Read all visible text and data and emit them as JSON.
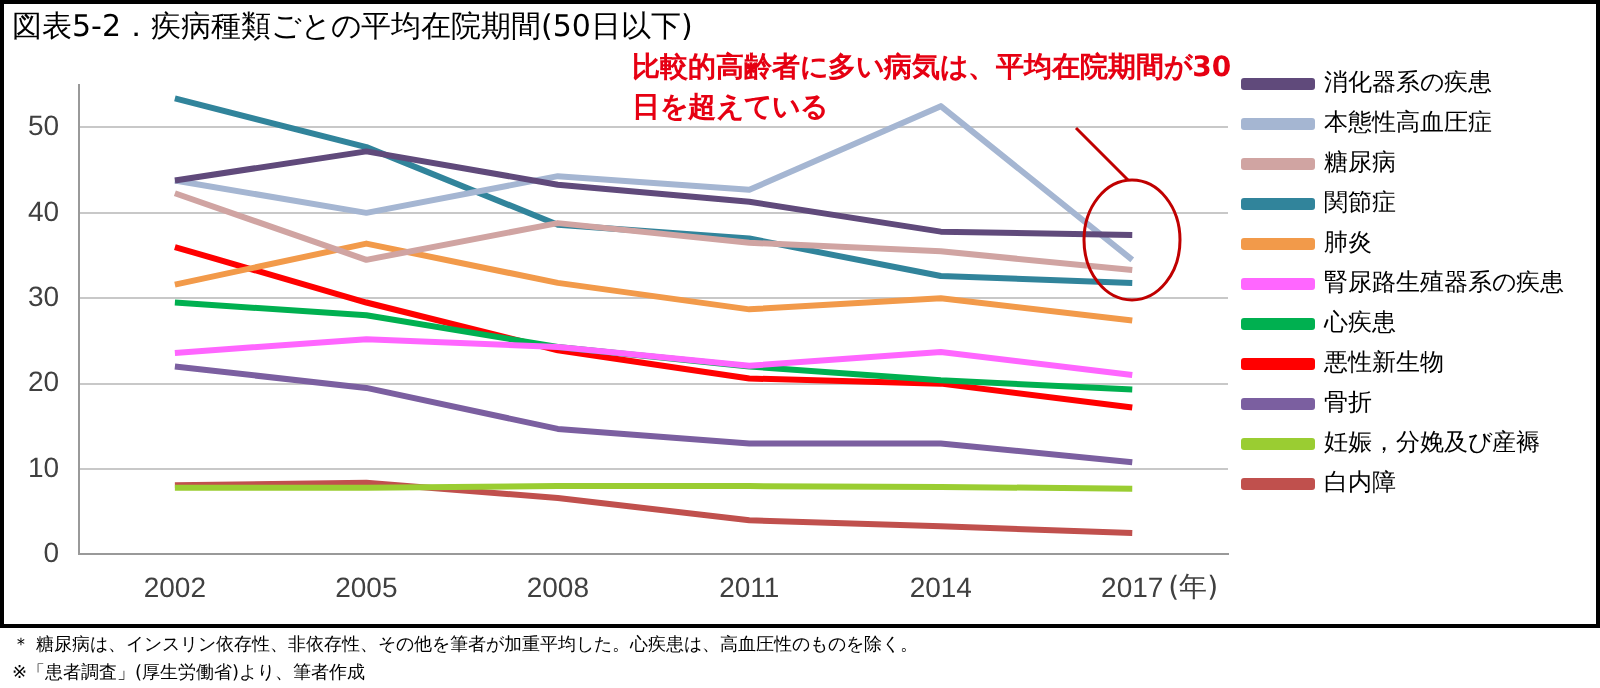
{
  "chart_data": {
    "type": "line",
    "title": "図表5-2．疾病種類ごとの平均在院期間(50日以下)",
    "xlabel": "(年)",
    "categories": [
      "2002",
      "2005",
      "2008",
      "2011",
      "2014",
      "2017"
    ],
    "series": [
      {
        "name": "消化器系の疾患",
        "color": "#604a7b",
        "values": [
          43.8,
          47.2,
          43.3,
          41.3,
          37.8,
          37.4
        ]
      },
      {
        "name": "本態性高血圧症",
        "color": "#a5b6d2",
        "values": [
          43.8,
          40.0,
          44.3,
          42.7,
          52.5,
          34.5
        ]
      },
      {
        "name": "糖尿病",
        "color": "#d0a4a2",
        "values": [
          42.3,
          34.5,
          38.8,
          36.5,
          35.5,
          33.3
        ]
      },
      {
        "name": "関節症",
        "color": "#31849b",
        "values": [
          53.4,
          47.7,
          38.6,
          37.0,
          32.6,
          31.8
        ]
      },
      {
        "name": "肺炎",
        "color": "#f29a4a",
        "values": [
          31.6,
          36.4,
          31.8,
          28.7,
          30.0,
          27.4
        ]
      },
      {
        "name": "腎尿路生殖器系の疾患",
        "color": "#ff66ff",
        "values": [
          23.6,
          25.2,
          24.3,
          22.1,
          23.7,
          21.0
        ]
      },
      {
        "name": "心疾患",
        "color": "#00b050",
        "values": [
          29.5,
          28.0,
          24.3,
          22.0,
          20.4,
          19.3
        ]
      },
      {
        "name": "悪性新生物",
        "color": "#ff0000",
        "values": [
          36.0,
          29.5,
          23.9,
          20.6,
          20.0,
          17.2
        ]
      },
      {
        "name": "骨折",
        "color": "#7b5fa0",
        "values": [
          22.0,
          19.5,
          14.7,
          13.0,
          13.0,
          10.8
        ]
      },
      {
        "name": "妊娠，分娩及び産褥",
        "color": "#9acd32",
        "values": [
          7.8,
          7.8,
          8.0,
          8.0,
          7.9,
          7.7
        ]
      },
      {
        "name": "白内障",
        "color": "#c0504d",
        "values": [
          8.1,
          8.4,
          6.6,
          4.0,
          3.3,
          2.5
        ]
      }
    ],
    "ylim": [
      0,
      55
    ],
    "yticks": [
      0,
      10,
      20,
      30,
      40,
      50
    ],
    "grid": "y",
    "legend": "right",
    "marker": "none",
    "line_style": "solid",
    "annotations": [
      "比較的高齢者に多い病気は、平均在院期間が30日を超えている",
      "＊ 糖尿病は、インスリン依存性、非依存性、その他を筆者が加重平均した。心疾患は、高血圧性のものを除く。",
      "※「患者調査」(厚生労働省)より、筆者作成"
    ]
  }
}
